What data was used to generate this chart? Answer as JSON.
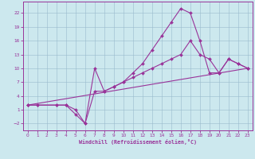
{
  "bg_color": "#cce8ee",
  "line_color": "#993399",
  "grid_color": "#99bbcc",
  "xlabel": "Windchill (Refroidissement éolien,°C)",
  "xlim": [
    -0.5,
    23.5
  ],
  "ylim": [
    -3.5,
    24.5
  ],
  "xticks": [
    0,
    1,
    2,
    3,
    4,
    5,
    6,
    7,
    8,
    9,
    10,
    11,
    12,
    13,
    14,
    15,
    16,
    17,
    18,
    19,
    20,
    21,
    22,
    23
  ],
  "yticks": [
    -2,
    1,
    4,
    7,
    10,
    13,
    16,
    19,
    22
  ],
  "line1_x": [
    0,
    1,
    3,
    4,
    5,
    6,
    7,
    8,
    9,
    10,
    11,
    12,
    13,
    14,
    15,
    16,
    17,
    18,
    19,
    20,
    21,
    22,
    23
  ],
  "line1_y": [
    2,
    2,
    2,
    2,
    1,
    -2,
    5,
    5,
    6,
    7,
    8,
    9,
    10,
    11,
    12,
    13,
    16,
    13,
    12,
    9,
    12,
    11,
    10
  ],
  "line2_x": [
    0,
    1,
    3,
    4,
    5,
    6,
    7,
    8,
    9,
    10,
    11,
    12,
    13,
    14,
    15,
    16,
    17,
    18,
    19,
    20,
    21,
    22,
    23
  ],
  "line2_y": [
    2,
    2,
    2,
    2,
    0,
    -2,
    10,
    5,
    6,
    7,
    9,
    11,
    14,
    17,
    20,
    23,
    22,
    16,
    9,
    9,
    12,
    11,
    10
  ],
  "line3_x": [
    0,
    23
  ],
  "line3_y": [
    2,
    10
  ]
}
